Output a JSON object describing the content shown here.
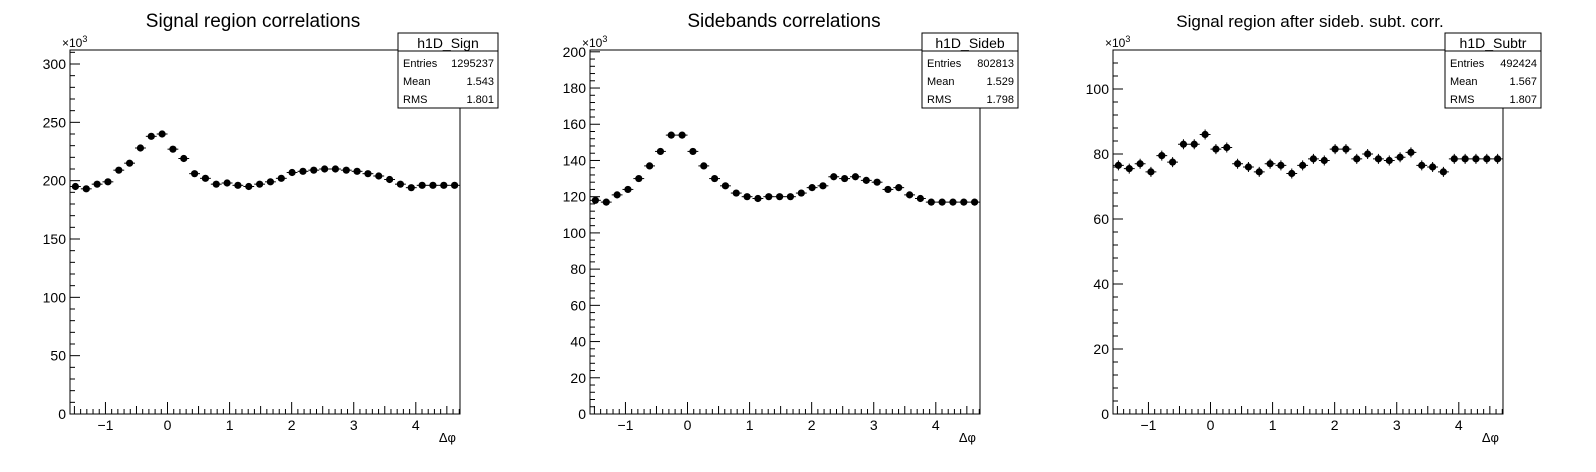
{
  "chart_data": [
    {
      "type": "scatter",
      "title": "Signal region correlations",
      "xlabel": "Δφ",
      "ylabel": "",
      "exponent_label": "×10",
      "exponent_power": "3",
      "xlim": [
        -1.571,
        4.712
      ],
      "ylim": [
        0,
        312
      ],
      "xticks": [
        -1,
        0,
        1,
        2,
        3,
        4
      ],
      "yticks": [
        0,
        50,
        100,
        150,
        200,
        250,
        300
      ],
      "stats": {
        "name": "h1D_Sign",
        "entries": "1295237",
        "mean": "1.543",
        "rms": "1.801"
      },
      "series": [
        {
          "x": [
            -1.484,
            -1.309,
            -1.134,
            -0.96,
            -0.785,
            -0.611,
            -0.436,
            -0.262,
            -0.087,
            0.087,
            0.262,
            0.436,
            0.611,
            0.785,
            0.96,
            1.134,
            1.309,
            1.484,
            1.658,
            1.833,
            2.007,
            2.182,
            2.356,
            2.531,
            2.705,
            2.88,
            3.054,
            3.229,
            3.403,
            3.578,
            3.752,
            3.927,
            4.102,
            4.276,
            4.451,
            4.625
          ],
          "values": [
            195,
            193,
            197,
            199,
            209,
            215,
            228,
            238,
            240,
            227,
            219,
            206,
            202,
            197,
            198,
            196,
            195,
            197,
            199,
            202,
            207,
            208,
            209,
            210,
            210,
            209,
            208,
            206,
            204,
            201,
            197,
            194,
            196,
            196,
            196,
            196
          ]
        }
      ]
    },
    {
      "type": "scatter",
      "title": "Sidebands correlations",
      "xlabel": "Δφ",
      "ylabel": "",
      "exponent_label": "×10",
      "exponent_power": "3",
      "xlim": [
        -1.571,
        4.712
      ],
      "ylim": [
        0,
        201
      ],
      "xticks": [
        -1,
        0,
        1,
        2,
        3,
        4
      ],
      "yticks": [
        0,
        20,
        40,
        60,
        80,
        100,
        120,
        140,
        160,
        180,
        200
      ],
      "stats": {
        "name": "h1D_Sideb",
        "entries": "802813",
        "mean": "1.529",
        "rms": "1.798"
      },
      "series": [
        {
          "x": [
            -1.484,
            -1.309,
            -1.134,
            -0.96,
            -0.785,
            -0.611,
            -0.436,
            -0.262,
            -0.087,
            0.087,
            0.262,
            0.436,
            0.611,
            0.785,
            0.96,
            1.134,
            1.309,
            1.484,
            1.658,
            1.833,
            2.007,
            2.182,
            2.356,
            2.531,
            2.705,
            2.88,
            3.054,
            3.229,
            3.403,
            3.578,
            3.752,
            3.927,
            4.102,
            4.276,
            4.451,
            4.625
          ],
          "values": [
            118,
            117,
            121,
            124,
            130,
            137,
            145,
            154,
            154,
            145,
            137,
            130,
            126,
            122,
            120,
            119,
            120,
            120,
            120,
            122,
            125,
            126,
            131,
            130,
            131,
            129,
            128,
            124,
            125,
            121,
            119,
            117,
            117,
            117,
            117,
            117
          ]
        }
      ]
    },
    {
      "type": "scatter",
      "title": "Signal region after sideb. subt. corr.",
      "xlabel": "Δφ",
      "ylabel": "",
      "exponent_label": "×10",
      "exponent_power": "3",
      "xlim": [
        -1.571,
        4.712
      ],
      "ylim": [
        0,
        112
      ],
      "xticks": [
        -1,
        0,
        1,
        2,
        3,
        4
      ],
      "yticks": [
        0,
        20,
        40,
        60,
        80,
        100
      ],
      "stats": {
        "name": "h1D_Subtr",
        "entries": "492424",
        "mean": "1.567",
        "rms": "1.807"
      },
      "series": [
        {
          "x": [
            -1.484,
            -1.309,
            -1.134,
            -0.96,
            -0.785,
            -0.611,
            -0.436,
            -0.262,
            -0.087,
            0.087,
            0.262,
            0.436,
            0.611,
            0.785,
            0.96,
            1.134,
            1.309,
            1.484,
            1.658,
            1.833,
            2.007,
            2.182,
            2.356,
            2.531,
            2.705,
            2.88,
            3.054,
            3.229,
            3.403,
            3.578,
            3.752,
            3.927,
            4.102,
            4.276,
            4.451,
            4.625
          ],
          "values": [
            76.5,
            75.5,
            77,
            74.5,
            79.5,
            77.5,
            83,
            83,
            86,
            81.5,
            82,
            77,
            76,
            74.5,
            77,
            76.5,
            74,
            76.5,
            78.5,
            78,
            81.5,
            81.5,
            78.5,
            80,
            78.5,
            78,
            79,
            80.5,
            76.5,
            76,
            74.5,
            78.5,
            78.5,
            78.5,
            78.5,
            78.5
          ]
        }
      ]
    }
  ]
}
